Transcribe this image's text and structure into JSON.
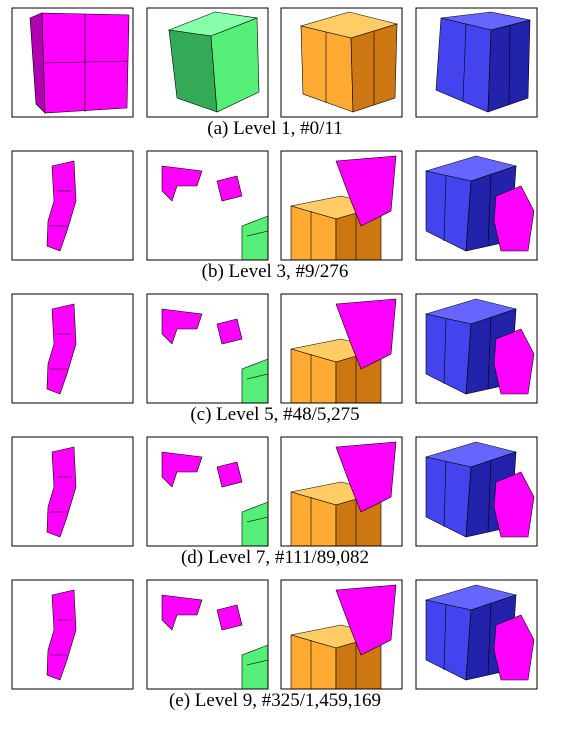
{
  "figure": {
    "captions": [
      "(a) Level 1, #0/11",
      "(b) Level 3, #9/276",
      "(c) Level 5, #48/5,275",
      "(d) Level 7, #111/89,082",
      "(e) Level 9, #325/1,459,169"
    ]
  }
}
